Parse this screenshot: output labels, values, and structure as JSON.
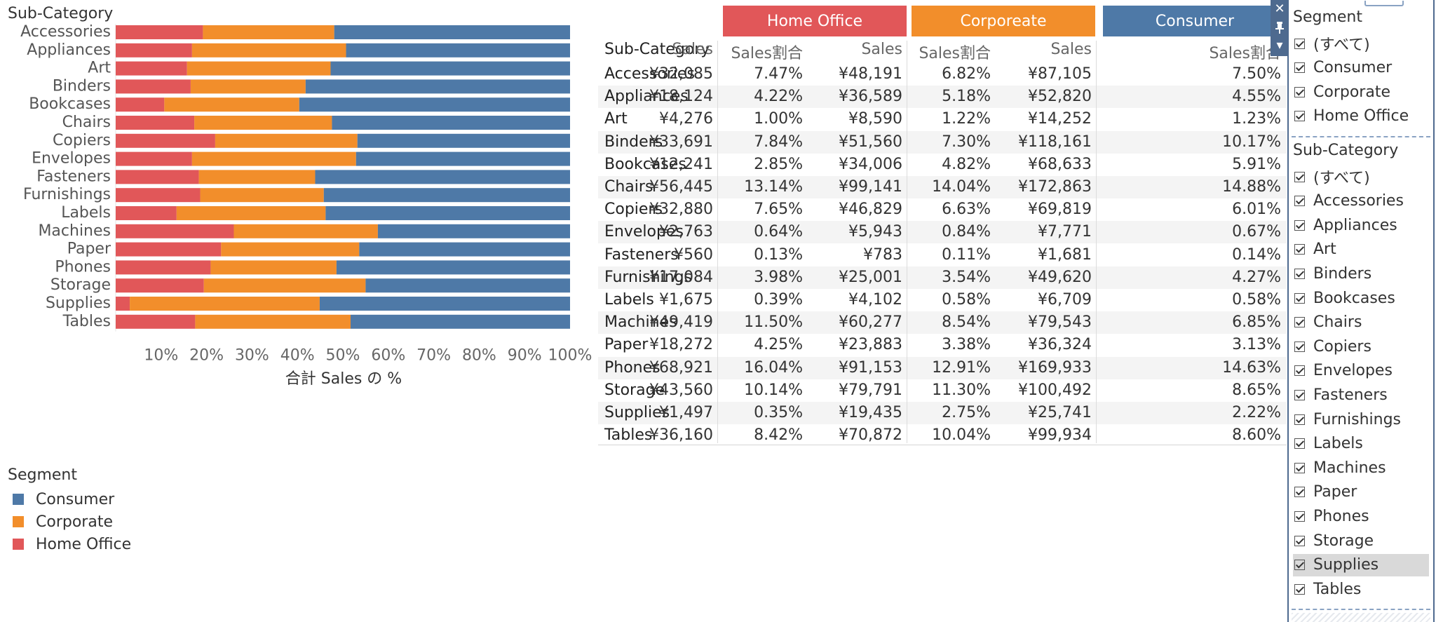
{
  "chart_data": {
    "type": "bar",
    "orientation": "horizontal",
    "stacked": "100%",
    "title": "Sub-Category",
    "xlabel": "合計 Sales の %",
    "xlim": [
      0,
      100
    ],
    "x_ticks": [
      "10%",
      "20%",
      "30%",
      "40%",
      "50%",
      "60%",
      "70%",
      "80%",
      "90%",
      "100%"
    ],
    "categories": [
      "Accessories",
      "Appliances",
      "Art",
      "Binders",
      "Bookcases",
      "Chairs",
      "Copiers",
      "Envelopes",
      "Fasteners",
      "Furnishings",
      "Labels",
      "Machines",
      "Paper",
      "Phones",
      "Storage",
      "Supplies",
      "Tables"
    ],
    "series": [
      {
        "name": "Home Office",
        "color": "#E15759",
        "values": [
          19.2,
          16.8,
          15.7,
          16.5,
          10.7,
          17.3,
          21.9,
          16.8,
          18.3,
          18.6,
          13.4,
          26.0,
          23.2,
          20.9,
          19.4,
          3.1,
          17.5
        ]
      },
      {
        "name": "Corporate",
        "color": "#F28E2B",
        "values": [
          28.9,
          33.9,
          31.6,
          25.3,
          29.7,
          30.3,
          31.3,
          36.1,
          25.6,
          27.2,
          32.8,
          31.7,
          30.4,
          27.7,
          35.6,
          41.8,
          34.2
        ]
      },
      {
        "name": "Consumer",
        "color": "#4E79A7",
        "values": [
          51.9,
          49.3,
          52.7,
          58.2,
          59.6,
          52.4,
          46.8,
          47.1,
          56.1,
          54.2,
          53.8,
          42.3,
          46.4,
          51.4,
          45.0,
          55.1,
          48.3
        ]
      }
    ]
  },
  "legend": {
    "title": "Segment",
    "items": [
      {
        "label": "Consumer",
        "color": "#4E79A7"
      },
      {
        "label": "Corporate",
        "color": "#F28E2B"
      },
      {
        "label": "Home Office",
        "color": "#E15759"
      }
    ]
  },
  "table": {
    "segment_headers": [
      {
        "label": "Home Office",
        "color": "#E15759"
      },
      {
        "label": "Corporeate",
        "color": "#F28E2B"
      },
      {
        "label": "Consumer",
        "color": "#4E79A7"
      }
    ],
    "first_col_header": "Sub-Category",
    "sales_header": "Sales",
    "share_header": "Sales割合",
    "rows": [
      {
        "name": "Accessories",
        "values": [
          "¥32,085",
          "7.47%",
          "¥48,191",
          "6.82%",
          "¥87,105",
          "7.50%"
        ]
      },
      {
        "name": "Appliances",
        "values": [
          "¥18,124",
          "4.22%",
          "¥36,589",
          "5.18%",
          "¥52,820",
          "4.55%"
        ]
      },
      {
        "name": "Art",
        "values": [
          "¥4,276",
          "1.00%",
          "¥8,590",
          "1.22%",
          "¥14,252",
          "1.23%"
        ]
      },
      {
        "name": "Binders",
        "values": [
          "¥33,691",
          "7.84%",
          "¥51,560",
          "7.30%",
          "¥118,161",
          "10.17%"
        ]
      },
      {
        "name": "Bookcases",
        "values": [
          "¥12,241",
          "2.85%",
          "¥34,006",
          "4.82%",
          "¥68,633",
          "5.91%"
        ]
      },
      {
        "name": "Chairs",
        "values": [
          "¥56,445",
          "13.14%",
          "¥99,141",
          "14.04%",
          "¥172,863",
          "14.88%"
        ]
      },
      {
        "name": "Copiers",
        "values": [
          "¥32,880",
          "7.65%",
          "¥46,829",
          "6.63%",
          "¥69,819",
          "6.01%"
        ]
      },
      {
        "name": "Envelopes",
        "values": [
          "¥2,763",
          "0.64%",
          "¥5,943",
          "0.84%",
          "¥7,771",
          "0.67%"
        ]
      },
      {
        "name": "Fasteners",
        "values": [
          "¥560",
          "0.13%",
          "¥783",
          "0.11%",
          "¥1,681",
          "0.14%"
        ]
      },
      {
        "name": "Furnishings",
        "values": [
          "¥17,084",
          "3.98%",
          "¥25,001",
          "3.54%",
          "¥49,620",
          "4.27%"
        ]
      },
      {
        "name": "Labels",
        "values": [
          "¥1,675",
          "0.39%",
          "¥4,102",
          "0.58%",
          "¥6,709",
          "0.58%"
        ]
      },
      {
        "name": "Machines",
        "values": [
          "¥49,419",
          "11.50%",
          "¥60,277",
          "8.54%",
          "¥79,543",
          "6.85%"
        ]
      },
      {
        "name": "Paper",
        "values": [
          "¥18,272",
          "4.25%",
          "¥23,883",
          "3.38%",
          "¥36,324",
          "3.13%"
        ]
      },
      {
        "name": "Phones",
        "values": [
          "¥68,921",
          "16.04%",
          "¥91,153",
          "12.91%",
          "¥169,933",
          "14.63%"
        ]
      },
      {
        "name": "Storage",
        "values": [
          "¥43,560",
          "10.14%",
          "¥79,791",
          "11.30%",
          "¥100,492",
          "8.65%"
        ]
      },
      {
        "name": "Supplies",
        "values": [
          "¥1,497",
          "0.35%",
          "¥19,435",
          "2.75%",
          "¥25,741",
          "2.22%"
        ]
      },
      {
        "name": "Tables",
        "values": [
          "¥36,160",
          "8.42%",
          "¥70,872",
          "10.04%",
          "¥99,934",
          "8.60%"
        ]
      }
    ]
  },
  "filters": {
    "segment": {
      "title": "Segment",
      "items": [
        "(すべて)",
        "Consumer",
        "Corporate",
        "Home Office"
      ]
    },
    "subcategory": {
      "title": "Sub-Category",
      "items": [
        "(すべて)",
        "Accessories",
        "Appliances",
        "Art",
        "Binders",
        "Bookcases",
        "Chairs",
        "Copiers",
        "Envelopes",
        "Fasteners",
        "Furnishings",
        "Labels",
        "Machines",
        "Paper",
        "Phones",
        "Storage",
        "Supplies",
        "Tables"
      ],
      "highlighted": "Supplies"
    }
  },
  "panel_controls": {
    "close": "✕",
    "pin": "📌",
    "menu": "▾"
  }
}
